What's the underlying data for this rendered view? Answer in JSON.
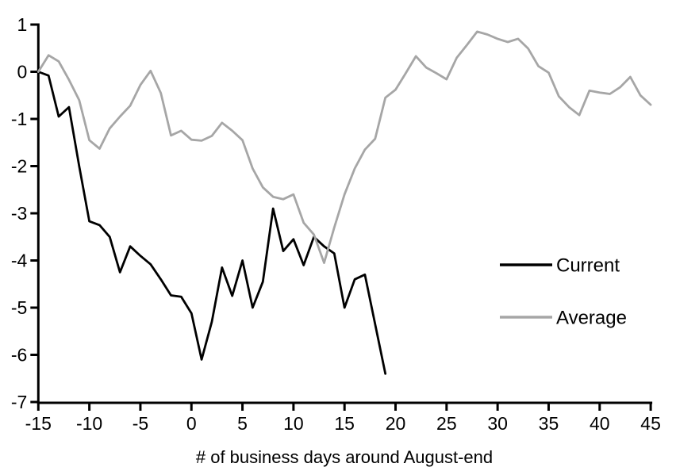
{
  "colors": {
    "background": "#ffffff",
    "axis": "#000000",
    "current_line": "#000000",
    "average_line": "#a6a6a6"
  },
  "legend": {
    "items": [
      {
        "label": "Current",
        "color": "#000000"
      },
      {
        "label": "Average",
        "color": "#a6a6a6"
      }
    ]
  },
  "chart_data": {
    "type": "line",
    "title": "",
    "xlabel": "# of business days around August-end",
    "ylabel": "",
    "xlim": [
      -15,
      45
    ],
    "ylim": [
      -7,
      1
    ],
    "grid": false,
    "legend_position": "right-middle",
    "x_ticks": [
      -15,
      -10,
      -5,
      0,
      5,
      10,
      15,
      20,
      25,
      30,
      35,
      40,
      45
    ],
    "y_ticks": [
      1,
      0,
      -1,
      -2,
      -3,
      -4,
      -5,
      -6,
      -7
    ],
    "series": [
      {
        "name": "Current",
        "color": "#000000",
        "x": [
          -15,
          -14,
          -13,
          -12,
          -11,
          -10,
          -9,
          -8,
          -7,
          -6,
          -5,
          -4,
          -3,
          -2,
          -1,
          0,
          1,
          2,
          3,
          4,
          5,
          6,
          7,
          8,
          9,
          10,
          11,
          12,
          13,
          14,
          15,
          16,
          17,
          18,
          19
        ],
        "values": [
          0.0,
          -0.08,
          -0.95,
          -0.75,
          -2.0,
          -3.17,
          -3.25,
          -3.5,
          -4.25,
          -3.7,
          -3.9,
          -4.08,
          -4.4,
          -4.74,
          -4.77,
          -5.12,
          -6.1,
          -5.3,
          -4.15,
          -4.75,
          -4.0,
          -5.0,
          -4.45,
          -2.9,
          -3.8,
          -3.55,
          -4.1,
          -3.5,
          -3.7,
          -3.85,
          -5.0,
          -4.4,
          -4.3,
          -5.35,
          -6.4
        ]
      },
      {
        "name": "Average",
        "color": "#a6a6a6",
        "x": [
          -15,
          -14,
          -13,
          -12,
          -11,
          -10,
          -9,
          -8,
          -7,
          -6,
          -5,
          -4,
          -3,
          -2,
          -1,
          0,
          1,
          2,
          3,
          4,
          5,
          6,
          7,
          8,
          9,
          10,
          11,
          12,
          13,
          14,
          15,
          16,
          17,
          18,
          19,
          20,
          21,
          22,
          23,
          24,
          25,
          26,
          27,
          28,
          29,
          30,
          31,
          32,
          33,
          34,
          35,
          36,
          37,
          38,
          39,
          40,
          41,
          42,
          43,
          44,
          45
        ],
        "values": [
          0.0,
          0.35,
          0.22,
          -0.17,
          -0.6,
          -1.45,
          -1.63,
          -1.2,
          -0.95,
          -0.72,
          -0.28,
          0.02,
          -0.45,
          -1.35,
          -1.25,
          -1.44,
          -1.46,
          -1.36,
          -1.08,
          -1.25,
          -1.45,
          -2.05,
          -2.45,
          -2.65,
          -2.7,
          -2.6,
          -3.2,
          -3.45,
          -4.05,
          -3.3,
          -2.6,
          -2.05,
          -1.65,
          -1.42,
          -0.55,
          -0.38,
          -0.03,
          0.33,
          0.09,
          -0.03,
          -0.16,
          0.3,
          0.57,
          0.85,
          0.79,
          0.7,
          0.63,
          0.7,
          0.49,
          0.12,
          -0.02,
          -0.52,
          -0.75,
          -0.92,
          -0.4,
          -0.44,
          -0.47,
          -0.33,
          -0.11,
          -0.5,
          -0.7
        ]
      }
    ]
  }
}
